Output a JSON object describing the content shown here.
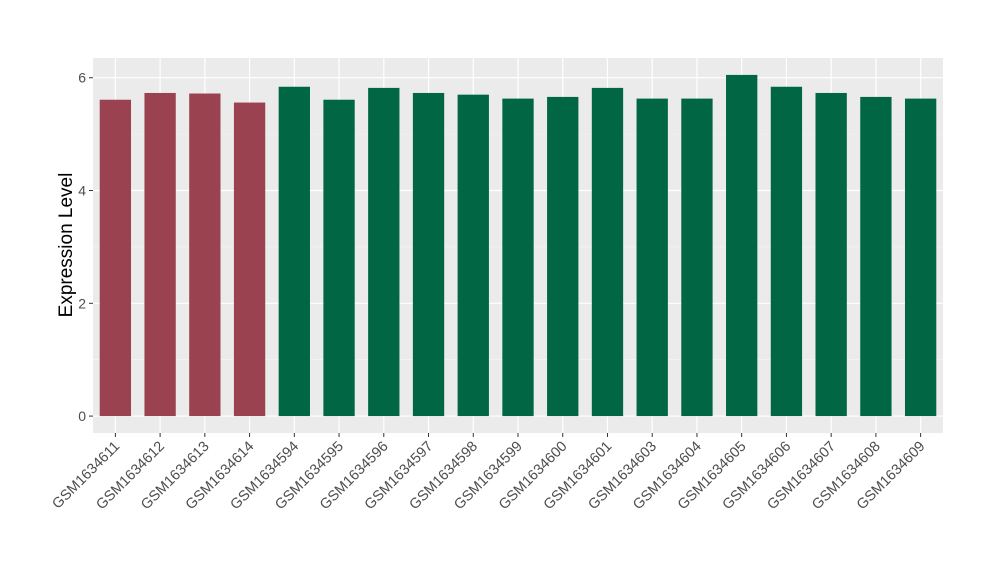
{
  "chart_data": {
    "type": "bar",
    "title": "",
    "xlabel": "",
    "ylabel": "Expression Level",
    "ylim": [
      -0.3,
      6.35
    ],
    "yticks": [
      0,
      2,
      4,
      6
    ],
    "grid": true,
    "categories": [
      "GSM1634611",
      "GSM1634612",
      "GSM1634613",
      "GSM1634614",
      "GSM1634594",
      "GSM1634595",
      "GSM1634596",
      "GSM1634597",
      "GSM1634598",
      "GSM1634599",
      "GSM1634600",
      "GSM1634601",
      "GSM1634603",
      "GSM1634604",
      "GSM1634605",
      "GSM1634606",
      "GSM1634607",
      "GSM1634608",
      "GSM1634609"
    ],
    "values": [
      5.61,
      5.73,
      5.72,
      5.56,
      5.84,
      5.61,
      5.82,
      5.73,
      5.7,
      5.63,
      5.66,
      5.82,
      5.63,
      5.63,
      6.05,
      5.84,
      5.73,
      5.66,
      5.63
    ],
    "groups": [
      "a",
      "a",
      "a",
      "a",
      "b",
      "b",
      "b",
      "b",
      "b",
      "b",
      "b",
      "b",
      "b",
      "b",
      "b",
      "b",
      "b",
      "b",
      "b"
    ],
    "colors": {
      "a": "#9B4250",
      "b": "#006644"
    },
    "panel_background": "#EBEBEB"
  }
}
